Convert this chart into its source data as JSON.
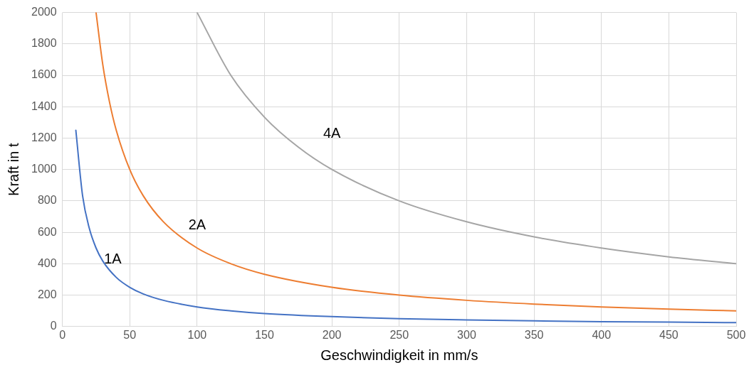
{
  "chart_data": {
    "type": "line",
    "xlabel": "Geschwindigkeit in mm/s",
    "ylabel": "Kraft in t",
    "xlim": [
      0,
      500
    ],
    "xticks": [
      0,
      50,
      100,
      150,
      200,
      250,
      300,
      350,
      400,
      450,
      500
    ],
    "ylim": [
      0,
      2000
    ],
    "yticks": [
      0,
      200,
      400,
      600,
      800,
      1000,
      1200,
      1400,
      1600,
      1800,
      2000
    ],
    "grid": true,
    "legend": false,
    "marker": "none",
    "line_style": "solid",
    "series": [
      {
        "name": "1A",
        "color": "#4472c4",
        "x": [
          10,
          15,
          20,
          25,
          30,
          40,
          50,
          60,
          75,
          100,
          125,
          150,
          200,
          250,
          300,
          350,
          400,
          450,
          500
        ],
        "values": [
          1250,
          833,
          625,
          500,
          417,
          313,
          250,
          208,
          167,
          125,
          100,
          83,
          63,
          50,
          42,
          36,
          31,
          28,
          25
        ]
      },
      {
        "name": "2A",
        "color": "#ed7d31",
        "x": [
          25,
          30,
          35,
          40,
          50,
          60,
          75,
          100,
          125,
          150,
          200,
          250,
          300,
          350,
          400,
          450,
          500
        ],
        "values": [
          2000,
          1667,
          1429,
          1250,
          1000,
          833,
          667,
          500,
          400,
          333,
          250,
          200,
          167,
          143,
          125,
          111,
          100
        ]
      },
      {
        "name": "4A",
        "color": "#a5a5a5",
        "x": [
          100,
          125,
          150,
          175,
          200,
          250,
          300,
          350,
          400,
          450,
          500
        ],
        "values": [
          2000,
          1600,
          1333,
          1143,
          1000,
          800,
          667,
          571,
          500,
          444,
          400
        ]
      }
    ]
  }
}
